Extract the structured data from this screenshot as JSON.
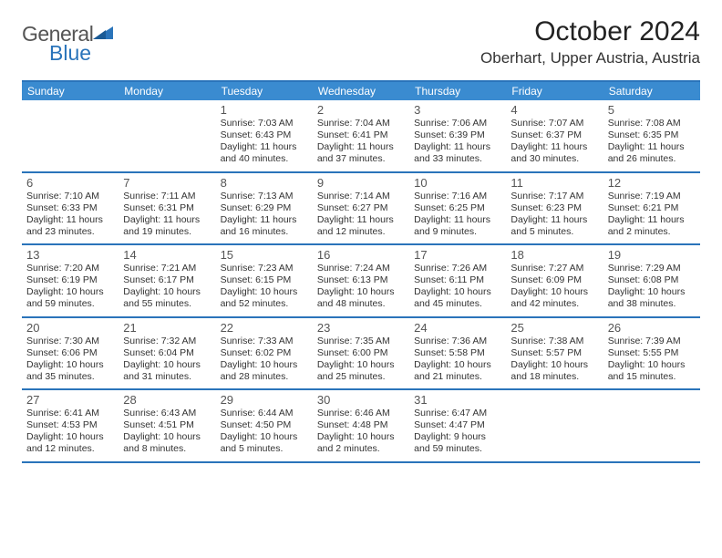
{
  "logo": {
    "general": "General",
    "blue": "Blue"
  },
  "title": "October 2024",
  "location": "Oberhart, Upper Austria, Austria",
  "dow": [
    "Sunday",
    "Monday",
    "Tuesday",
    "Wednesday",
    "Thursday",
    "Friday",
    "Saturday"
  ],
  "colors": {
    "header_bg": "#3a8bd0",
    "rule": "#2a74ba",
    "logo_blue": "#2a74ba",
    "logo_gray": "#555555",
    "text": "#333333"
  },
  "weeks": [
    [
      null,
      null,
      {
        "n": "1",
        "sr": "7:03 AM",
        "ss": "6:43 PM",
        "dl": "11 hours and 40 minutes."
      },
      {
        "n": "2",
        "sr": "7:04 AM",
        "ss": "6:41 PM",
        "dl": "11 hours and 37 minutes."
      },
      {
        "n": "3",
        "sr": "7:06 AM",
        "ss": "6:39 PM",
        "dl": "11 hours and 33 minutes."
      },
      {
        "n": "4",
        "sr": "7:07 AM",
        "ss": "6:37 PM",
        "dl": "11 hours and 30 minutes."
      },
      {
        "n": "5",
        "sr": "7:08 AM",
        "ss": "6:35 PM",
        "dl": "11 hours and 26 minutes."
      }
    ],
    [
      {
        "n": "6",
        "sr": "7:10 AM",
        "ss": "6:33 PM",
        "dl": "11 hours and 23 minutes."
      },
      {
        "n": "7",
        "sr": "7:11 AM",
        "ss": "6:31 PM",
        "dl": "11 hours and 19 minutes."
      },
      {
        "n": "8",
        "sr": "7:13 AM",
        "ss": "6:29 PM",
        "dl": "11 hours and 16 minutes."
      },
      {
        "n": "9",
        "sr": "7:14 AM",
        "ss": "6:27 PM",
        "dl": "11 hours and 12 minutes."
      },
      {
        "n": "10",
        "sr": "7:16 AM",
        "ss": "6:25 PM",
        "dl": "11 hours and 9 minutes."
      },
      {
        "n": "11",
        "sr": "7:17 AM",
        "ss": "6:23 PM",
        "dl": "11 hours and 5 minutes."
      },
      {
        "n": "12",
        "sr": "7:19 AM",
        "ss": "6:21 PM",
        "dl": "11 hours and 2 minutes."
      }
    ],
    [
      {
        "n": "13",
        "sr": "7:20 AM",
        "ss": "6:19 PM",
        "dl": "10 hours and 59 minutes."
      },
      {
        "n": "14",
        "sr": "7:21 AM",
        "ss": "6:17 PM",
        "dl": "10 hours and 55 minutes."
      },
      {
        "n": "15",
        "sr": "7:23 AM",
        "ss": "6:15 PM",
        "dl": "10 hours and 52 minutes."
      },
      {
        "n": "16",
        "sr": "7:24 AM",
        "ss": "6:13 PM",
        "dl": "10 hours and 48 minutes."
      },
      {
        "n": "17",
        "sr": "7:26 AM",
        "ss": "6:11 PM",
        "dl": "10 hours and 45 minutes."
      },
      {
        "n": "18",
        "sr": "7:27 AM",
        "ss": "6:09 PM",
        "dl": "10 hours and 42 minutes."
      },
      {
        "n": "19",
        "sr": "7:29 AM",
        "ss": "6:08 PM",
        "dl": "10 hours and 38 minutes."
      }
    ],
    [
      {
        "n": "20",
        "sr": "7:30 AM",
        "ss": "6:06 PM",
        "dl": "10 hours and 35 minutes."
      },
      {
        "n": "21",
        "sr": "7:32 AM",
        "ss": "6:04 PM",
        "dl": "10 hours and 31 minutes."
      },
      {
        "n": "22",
        "sr": "7:33 AM",
        "ss": "6:02 PM",
        "dl": "10 hours and 28 minutes."
      },
      {
        "n": "23",
        "sr": "7:35 AM",
        "ss": "6:00 PM",
        "dl": "10 hours and 25 minutes."
      },
      {
        "n": "24",
        "sr": "7:36 AM",
        "ss": "5:58 PM",
        "dl": "10 hours and 21 minutes."
      },
      {
        "n": "25",
        "sr": "7:38 AM",
        "ss": "5:57 PM",
        "dl": "10 hours and 18 minutes."
      },
      {
        "n": "26",
        "sr": "7:39 AM",
        "ss": "5:55 PM",
        "dl": "10 hours and 15 minutes."
      }
    ],
    [
      {
        "n": "27",
        "sr": "6:41 AM",
        "ss": "4:53 PM",
        "dl": "10 hours and 12 minutes."
      },
      {
        "n": "28",
        "sr": "6:43 AM",
        "ss": "4:51 PM",
        "dl": "10 hours and 8 minutes."
      },
      {
        "n": "29",
        "sr": "6:44 AM",
        "ss": "4:50 PM",
        "dl": "10 hours and 5 minutes."
      },
      {
        "n": "30",
        "sr": "6:46 AM",
        "ss": "4:48 PM",
        "dl": "10 hours and 2 minutes."
      },
      {
        "n": "31",
        "sr": "6:47 AM",
        "ss": "4:47 PM",
        "dl": "9 hours and 59 minutes."
      },
      null,
      null
    ]
  ],
  "labels": {
    "sunrise": "Sunrise: ",
    "sunset": "Sunset: ",
    "daylight": "Daylight: "
  }
}
